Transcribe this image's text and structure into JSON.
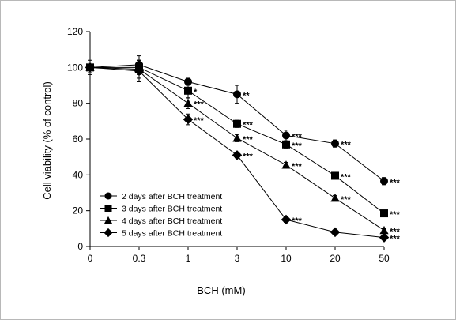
{
  "chart_data": {
    "type": "line",
    "title": "",
    "xlabel": "BCH (mM)",
    "ylabel": "Cell viability (% of control)",
    "categories": [
      "0",
      "0.3",
      "1",
      "3",
      "10",
      "20",
      "50"
    ],
    "ylim": [
      0,
      120
    ],
    "yticks": [
      "0",
      "20",
      "40",
      "60",
      "80",
      "100",
      "120"
    ],
    "grid": false,
    "legend_position": "bottom-left",
    "series": [
      {
        "name": "2 days after BCH treatment",
        "marker": "circle",
        "values": [
          100,
          101.5,
          92,
          85,
          62,
          57.5,
          36.5
        ],
        "errors": [
          4,
          5,
          2,
          5,
          3,
          2,
          2
        ],
        "significance": [
          "",
          "",
          "",
          "**",
          "***",
          "***",
          "***"
        ]
      },
      {
        "name": "3 days after BCH treatment",
        "marker": "square",
        "values": [
          100,
          100,
          87,
          68.5,
          57,
          39.5,
          18.5
        ],
        "errors": [
          3,
          4,
          4,
          2,
          2,
          1.5,
          1.5
        ],
        "significance": [
          "",
          "",
          "*",
          "***",
          "***",
          "***",
          "***"
        ]
      },
      {
        "name": "4 days after BCH treatment",
        "marker": "triangle",
        "values": [
          100,
          99,
          80,
          60.5,
          45.5,
          27,
          9
        ],
        "errors": [
          3,
          5,
          3,
          2,
          1.5,
          1.5,
          1
        ],
        "significance": [
          "",
          "",
          "***",
          "***",
          "***",
          "***",
          "***"
        ]
      },
      {
        "name": "5 days after BCH treatment",
        "marker": "diamond",
        "values": [
          100,
          98,
          71,
          51,
          15,
          8,
          5
        ],
        "errors": [
          3,
          6,
          3,
          1.5,
          1.5,
          1,
          1
        ],
        "significance": [
          "",
          "",
          "***",
          "***",
          "***",
          "",
          "***"
        ]
      }
    ]
  }
}
